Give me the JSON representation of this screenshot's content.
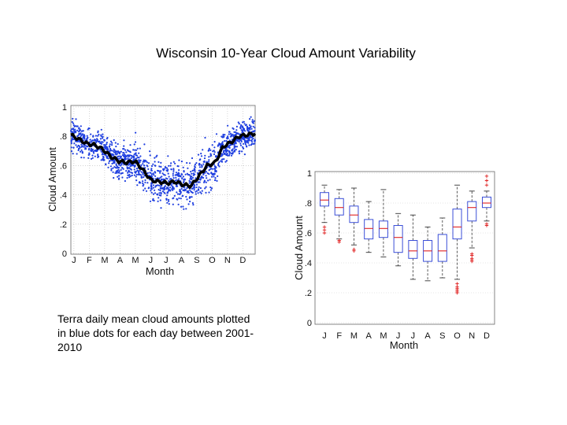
{
  "title": "Wisconsin 10-Year Cloud Amount Variability",
  "caption": "Terra daily mean cloud amounts plotted in blue dots for each day between 2001-2010",
  "colors": {
    "dots": "#1f3fe0",
    "mean_line": "#000000",
    "box": "#3b4fd8",
    "median": "#e02020",
    "outlier": "#e02020",
    "whisker": "#333333"
  },
  "chart_data": [
    {
      "type": "scatter",
      "xlabel": "Month",
      "ylabel": "Cloud Amount",
      "ylim": [
        0,
        1
      ],
      "x_ticks": [
        "J",
        "F",
        "M",
        "A",
        "M",
        "J",
        "J",
        "A",
        "S",
        "O",
        "N",
        "D"
      ],
      "y_ticks": [
        "0",
        ".2",
        ".4",
        ".6",
        ".8",
        "1"
      ],
      "series": [
        {
          "name": "daily mean (blue dots, 2001-2010)",
          "style": "dots"
        },
        {
          "name": "10-year mean",
          "style": "line",
          "values": [
            0.81,
            0.78,
            0.75,
            0.74,
            0.71,
            0.66,
            0.63,
            0.62,
            0.63,
            0.57,
            0.5,
            0.49,
            0.48,
            0.49,
            0.47,
            0.46,
            0.53,
            0.6,
            0.62,
            0.73,
            0.76,
            0.8,
            0.81,
            0.82
          ]
        }
      ]
    },
    {
      "type": "box",
      "xlabel": "Month",
      "ylabel": "Cloud Amount",
      "ylim": [
        0,
        1
      ],
      "y_ticks": [
        "0",
        ".2",
        ".4",
        ".6",
        ".8",
        "1"
      ],
      "categories": [
        "J",
        "F",
        "M",
        "A",
        "M",
        "J",
        "J",
        "A",
        "S",
        "O",
        "N",
        "D"
      ],
      "boxes": [
        {
          "whisker_low": 0.67,
          "q1": 0.78,
          "median": 0.82,
          "q3": 0.87,
          "whisker_high": 0.92,
          "outliers": [
            0.6,
            0.62,
            0.64
          ]
        },
        {
          "whisker_low": 0.56,
          "q1": 0.72,
          "median": 0.77,
          "q3": 0.83,
          "whisker_high": 0.89,
          "outliers": [
            0.54,
            0.55
          ]
        },
        {
          "whisker_low": 0.52,
          "q1": 0.67,
          "median": 0.72,
          "q3": 0.78,
          "whisker_high": 0.9,
          "outliers": [
            0.48,
            0.49
          ]
        },
        {
          "whisker_low": 0.47,
          "q1": 0.56,
          "median": 0.63,
          "q3": 0.69,
          "whisker_high": 0.81,
          "outliers": []
        },
        {
          "whisker_low": 0.44,
          "q1": 0.57,
          "median": 0.63,
          "q3": 0.68,
          "whisker_high": 0.89,
          "outliers": []
        },
        {
          "whisker_low": 0.38,
          "q1": 0.47,
          "median": 0.57,
          "q3": 0.65,
          "whisker_high": 0.73,
          "outliers": []
        },
        {
          "whisker_low": 0.29,
          "q1": 0.43,
          "median": 0.48,
          "q3": 0.55,
          "whisker_high": 0.72,
          "outliers": []
        },
        {
          "whisker_low": 0.28,
          "q1": 0.41,
          "median": 0.48,
          "q3": 0.55,
          "whisker_high": 0.64,
          "outliers": []
        },
        {
          "whisker_low": 0.3,
          "q1": 0.41,
          "median": 0.48,
          "q3": 0.59,
          "whisker_high": 0.7,
          "outliers": []
        },
        {
          "whisker_low": 0.29,
          "q1": 0.56,
          "median": 0.64,
          "q3": 0.76,
          "whisker_high": 0.92,
          "outliers": [
            0.2,
            0.21,
            0.22,
            0.23,
            0.24,
            0.26
          ]
        },
        {
          "whisker_low": 0.5,
          "q1": 0.68,
          "median": 0.77,
          "q3": 0.81,
          "whisker_high": 0.88,
          "outliers": [
            0.41,
            0.42,
            0.43,
            0.45,
            0.46
          ]
        },
        {
          "whisker_low": 0.68,
          "q1": 0.77,
          "median": 0.8,
          "q3": 0.84,
          "whisker_high": 0.88,
          "outliers": [
            0.65,
            0.66,
            0.92,
            0.95,
            0.98
          ]
        }
      ]
    }
  ]
}
